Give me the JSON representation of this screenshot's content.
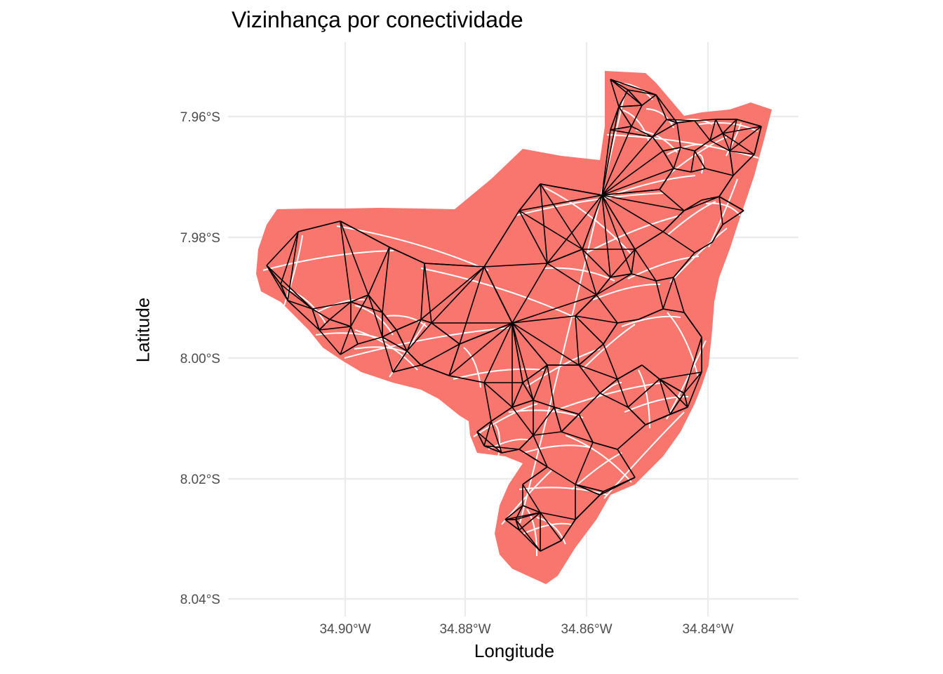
{
  "chart_data": {
    "type": "map",
    "title": "Vizinhança por conectividade",
    "xlabel": "Longitude",
    "ylabel": "Latitude",
    "x_ticks": [
      "34.90°W",
      "34.88°W",
      "34.86°W",
      "34.84°W"
    ],
    "y_ticks": [
      "7.96°S",
      "7.98°S",
      "8.00°S",
      "8.02°S",
      "8.04°S"
    ],
    "x_tick_values": [
      -34.9,
      -34.88,
      -34.86,
      -34.84
    ],
    "y_tick_values": [
      -7.96,
      -7.98,
      -8.0,
      -8.02,
      -8.04
    ],
    "xlim": [
      -34.919,
      -34.825
    ],
    "ylim": [
      -8.042,
      -7.948
    ],
    "grid": true,
    "colors": {
      "fill": "#F8766D",
      "border": "#ffffff",
      "links": "#000000",
      "grid": "#ebebeb"
    },
    "network_description_hidden": true
  }
}
